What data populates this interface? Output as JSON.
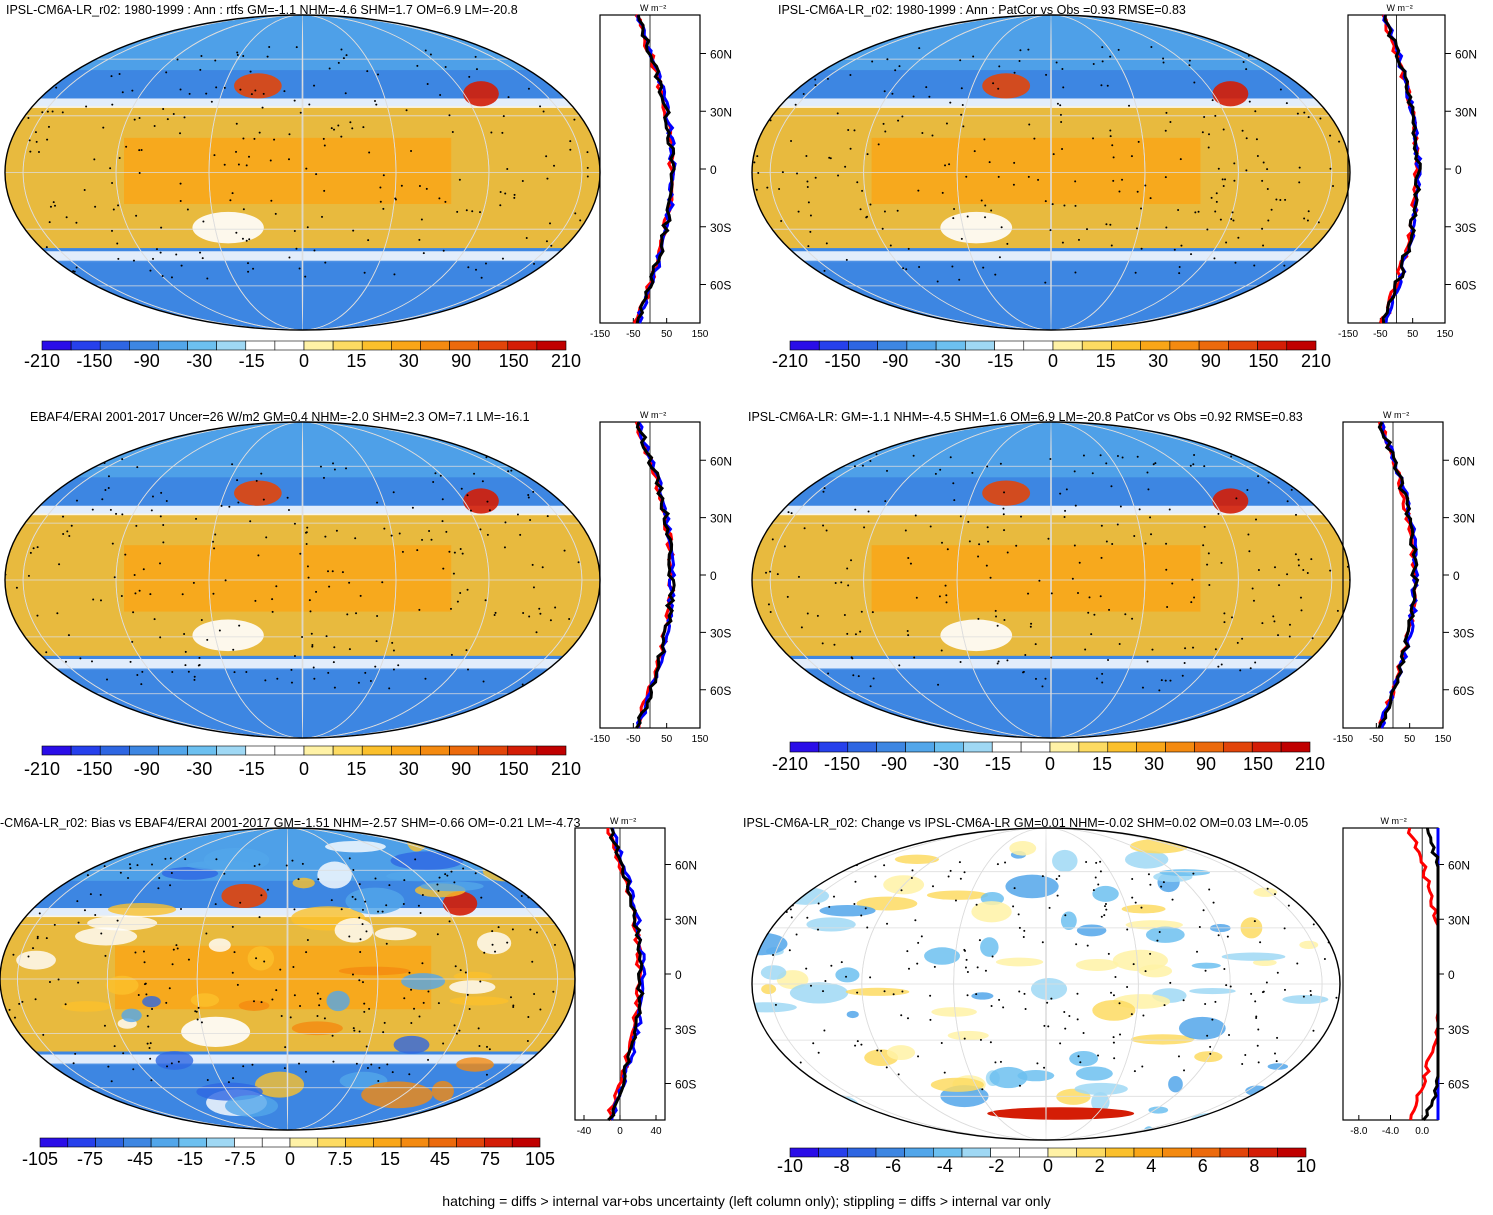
{
  "footer": "hatching = diffs > internal var+obs uncertainty (left column only); stippling = diffs > internal var only",
  "zonal_unit_label": "W m⁻²",
  "lat_ticks": [
    "60N",
    "30N",
    "0",
    "30S",
    "60S"
  ],
  "chart_data": [
    {
      "type": "heatmap",
      "title": "IPSL-CM6A-LR_r02: 1980-1999 : Ann : rtfs GM=-1.1 NHM=-4.6 SHM=1.7 OM=6.9 LM=-20.8",
      "colorbar_labels": [
        "-210",
        "-150",
        "-90",
        "-30",
        "-15",
        "0",
        "15",
        "30",
        "90",
        "150",
        "210"
      ],
      "zonal": {
        "xticks": [
          "-150",
          "-50",
          "50",
          "150"
        ],
        "xlim": [
          -150,
          150
        ]
      }
    },
    {
      "type": "heatmap",
      "title": "IPSL-CM6A-LR_r02: 1980-1999 : Ann : PatCor vs Obs =0.93 RMSE=0.83",
      "colorbar_labels": [
        "-210",
        "-150",
        "-90",
        "-30",
        "-15",
        "0",
        "15",
        "30",
        "90",
        "150",
        "210"
      ],
      "zonal": {
        "xticks": [
          "-150",
          "-50",
          "50",
          "150"
        ],
        "xlim": [
          -150,
          150
        ]
      }
    },
    {
      "type": "heatmap",
      "title": "EBAF4/ERAI 2001-2017 Uncer=26 W/m2 GM=0.4 NHM=-2.0 SHM=2.3 OM=7.1 LM=-16.1",
      "colorbar_labels": [
        "-210",
        "-150",
        "-90",
        "-30",
        "-15",
        "0",
        "15",
        "30",
        "90",
        "150",
        "210"
      ],
      "zonal": {
        "xticks": [
          "-150",
          "-50",
          "50",
          "150"
        ],
        "xlim": [
          -150,
          150
        ]
      }
    },
    {
      "type": "heatmap",
      "title": "IPSL-CM6A-LR: GM=-1.1 NHM=-4.5 SHM=1.6 OM=6.9 LM=-20.8 PatCor vs Obs =0.92 RMSE=0.83",
      "colorbar_labels": [
        "-210",
        "-150",
        "-90",
        "-30",
        "-15",
        "0",
        "15",
        "30",
        "90",
        "150",
        "210"
      ],
      "zonal": {
        "xticks": [
          "-150",
          "-50",
          "50",
          "150"
        ],
        "xlim": [
          -150,
          150
        ]
      }
    },
    {
      "type": "heatmap",
      "title": "-CM6A-LR_r02: Bias vs EBAF4/ERAI 2001-2017 GM=-1.51 NHM=-2.57 SHM=-0.66 OM=-0.21 LM=-4.73",
      "colorbar_labels": [
        "-105",
        "-75",
        "-45",
        "-15",
        "-7.5",
        "0",
        "7.5",
        "15",
        "45",
        "75",
        "105"
      ],
      "zonal": {
        "xticks": [
          "-40",
          "0",
          "40"
        ],
        "xlim": [
          -50,
          50
        ]
      }
    },
    {
      "type": "heatmap",
      "title": "IPSL-CM6A-LR_r02: Change vs IPSL-CM6A-LR GM=0.01 NHM=-0.02 SHM=0.02 OM=0.03 LM=-0.05",
      "colorbar_labels": [
        "-10",
        "-8",
        "-6",
        "-4",
        "-2",
        "0",
        "2",
        "4",
        "6",
        "8",
        "10"
      ],
      "zonal": {
        "xticks": [
          "-8.0",
          "-4.0",
          "0.0"
        ],
        "xlim": [
          -10,
          2
        ]
      }
    }
  ],
  "palette": [
    "#2a0de8",
    "#2640ec",
    "#2e66e2",
    "#3d86e2",
    "#52a6ea",
    "#6cc0f0",
    "#9fd8f4",
    "#ffffff",
    "#ffffff",
    "#fff2a6",
    "#fddb62",
    "#fbc02c",
    "#f9a618",
    "#f48a10",
    "#ec6a0c",
    "#e2450a",
    "#d41d06",
    "#c00000"
  ],
  "line_colors": {
    "model": "#000000",
    "obs_a": "#ff0000",
    "obs_b": "#0000ff"
  }
}
